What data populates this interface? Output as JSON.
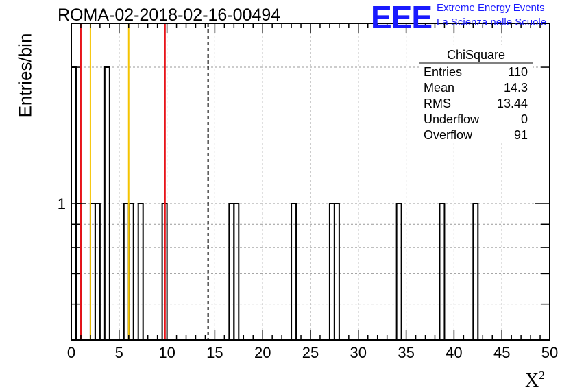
{
  "header": {
    "run_title": "ROMA-02-2018-02-16-00494",
    "logo_text": "EEE",
    "logo_line1": "Extreme Energy Events",
    "logo_line2": "La Scienza nelle Scuole"
  },
  "colors": {
    "logo": "#1a1aff",
    "red_lines": "#e8141a",
    "yellow_lines": "#f5c400",
    "grid": "#999999",
    "histogram": "#000000"
  },
  "chart_data": {
    "type": "bar",
    "histogram": true,
    "xlabel": "X",
    "xlabel_sup": "2",
    "ylabel": "Entries/bin",
    "xlim": [
      0,
      50
    ],
    "bin_width": 0.5,
    "y_scale": "log",
    "ylim": [
      0.5,
      2.5
    ],
    "x_ticks": [
      0,
      5,
      10,
      15,
      20,
      25,
      30,
      35,
      40,
      45,
      50
    ],
    "x_tick_labels": [
      "0",
      "5",
      "10",
      "15",
      "20",
      "25",
      "30",
      "35",
      "40",
      "45",
      "50"
    ],
    "y_tick_labels": [
      {
        "value": 1,
        "label": "1"
      }
    ],
    "grid": true,
    "bins": [
      {
        "x": 0.0,
        "count": 2
      },
      {
        "x": 0.5,
        "count": 1
      },
      {
        "x": 2.0,
        "count": 1
      },
      {
        "x": 2.5,
        "count": 1
      },
      {
        "x": 3.5,
        "count": 2
      },
      {
        "x": 5.5,
        "count": 1
      },
      {
        "x": 6.0,
        "count": 1
      },
      {
        "x": 7.0,
        "count": 1
      },
      {
        "x": 9.5,
        "count": 1
      },
      {
        "x": 16.5,
        "count": 1
      },
      {
        "x": 17.0,
        "count": 1
      },
      {
        "x": 23.0,
        "count": 1
      },
      {
        "x": 27.0,
        "count": 1
      },
      {
        "x": 27.5,
        "count": 1
      },
      {
        "x": 34.0,
        "count": 1
      },
      {
        "x": 38.5,
        "count": 1
      },
      {
        "x": 42.0,
        "count": 1
      }
    ],
    "reference_lines": [
      {
        "x": 1.0,
        "color": "red",
        "style": "solid"
      },
      {
        "x": 2.0,
        "color": "yellow",
        "style": "solid"
      },
      {
        "x": 6.0,
        "color": "yellow",
        "style": "solid"
      },
      {
        "x": 9.8,
        "color": "red",
        "style": "solid"
      },
      {
        "x": 14.3,
        "color": "black",
        "style": "dashed"
      }
    ],
    "stats_box": {
      "title": "ChiSquare",
      "rows": [
        {
          "label": "Entries",
          "value": "110"
        },
        {
          "label": "Mean",
          "value": "14.3"
        },
        {
          "label": "RMS",
          "value": "13.44"
        },
        {
          "label": "Underflow",
          "value": "0"
        },
        {
          "label": "Overflow",
          "value": "91"
        }
      ]
    }
  }
}
